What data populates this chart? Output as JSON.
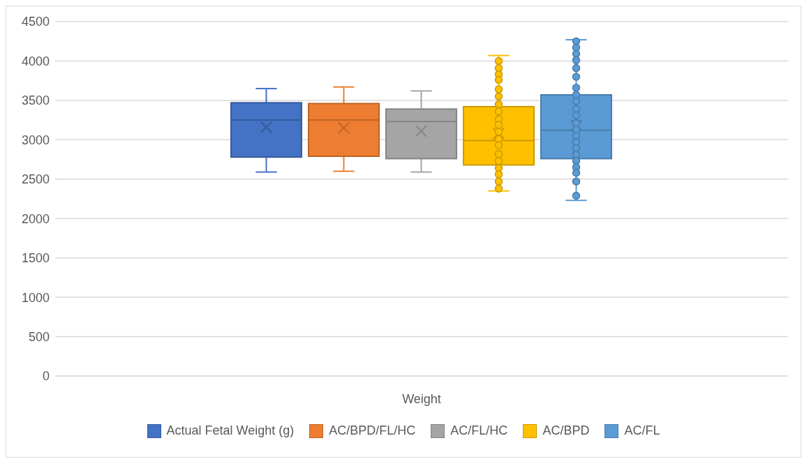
{
  "chart_data": {
    "type": "box",
    "categories": [
      "Weight"
    ],
    "ylim": [
      0,
      4500
    ],
    "yticks": [
      0,
      500,
      1000,
      1500,
      2000,
      2500,
      3000,
      3500,
      4000,
      4500
    ],
    "grid": "y",
    "legend": "bottom",
    "marker": "circle",
    "series": [
      {
        "name": "Actual Fetal Weight (g)",
        "color": "#4472c4",
        "boxes": [
          {
            "low": 2590,
            "q1": 2780,
            "median": 3250,
            "q3": 3470,
            "high": 3650,
            "mean": 3160
          }
        ]
      },
      {
        "name": "AC/BPD/FL/HC",
        "color": "#ed7d31",
        "boxes": [
          {
            "low": 2600,
            "q1": 2790,
            "median": 3250,
            "q3": 3460,
            "high": 3670,
            "mean": 3150
          }
        ]
      },
      {
        "name": "AC/FL/HC",
        "color": "#a5a5a5",
        "boxes": [
          {
            "low": 2590,
            "q1": 2760,
            "median": 3230,
            "q3": 3390,
            "high": 3620,
            "mean": 3110
          }
        ]
      },
      {
        "name": "AC/BPD",
        "color": "#ffc000",
        "boxes": [
          {
            "low": 2350,
            "q1": 2680,
            "median": 2990,
            "q3": 3420,
            "high": 4070,
            "mean": 3080
          }
        ]
      },
      {
        "type": "scatter",
        "color": "#ffc000",
        "x": [
          "Weight",
          "Weight",
          "Weight",
          "Weight",
          "Weight",
          "Weight",
          "Weight",
          "Weight",
          "Weight",
          "Weight",
          "Weight",
          "Weight",
          "Weight",
          "Weight",
          "Weight",
          "Weight",
          "Weight",
          "Weight",
          "Weight"
        ],
        "values": [
          4000,
          3910,
          3830,
          3760,
          3640,
          3550,
          3450,
          3360,
          3260,
          3190,
          3100,
          3010,
          2930,
          2820,
          2730,
          2640,
          2560,
          2470,
          2380
        ]
      },
      {
        "name": "AC/FL",
        "color": "#5b9bd5",
        "boxes": [
          {
            "low": 2230,
            "q1": 2760,
            "median": 3120,
            "q3": 3570,
            "high": 4270,
            "mean": 3180
          }
        ]
      },
      {
        "type": "scatter",
        "color": "#5b9bd5",
        "x": [
          "Weight",
          "Weight",
          "Weight",
          "Weight",
          "Weight",
          "Weight",
          "Weight",
          "Weight",
          "Weight",
          "Weight",
          "Weight",
          "Weight",
          "Weight",
          "Weight",
          "Weight",
          "Weight",
          "Weight",
          "Weight",
          "Weight",
          "Weight",
          "Weight",
          "Weight"
        ],
        "values": [
          4250,
          4170,
          4090,
          4010,
          3910,
          3800,
          3660,
          3570,
          3490,
          3390,
          3310,
          3210,
          3130,
          3050,
          2970,
          2890,
          2810,
          2730,
          2650,
          2580,
          2470,
          2290
        ]
      }
    ]
  }
}
